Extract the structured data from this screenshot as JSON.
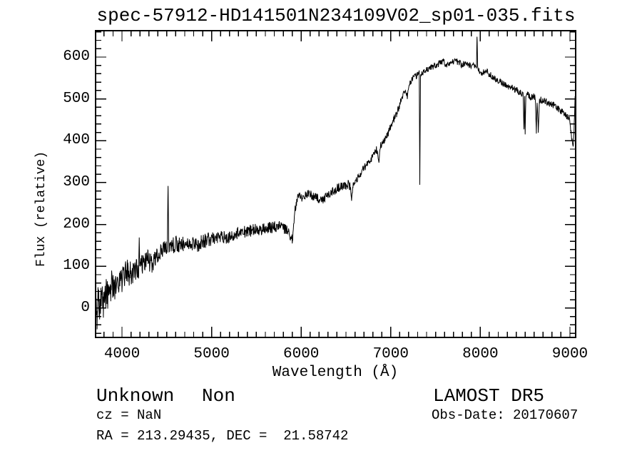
{
  "page": {
    "background": "#ffffff",
    "foreground": "#000000"
  },
  "title": "spec-57912-HD141501N234109V02_sp01-035.fits",
  "annotations": {
    "class_label": "Unknown",
    "subclass_label": "Non",
    "cz_line": "cz = NaN",
    "radec_line": "RA = 213.29435, DEC =  21.58742",
    "survey": "LAMOST DR5",
    "obs_date_line": "Obs-Date: 20170607"
  },
  "chart_data": {
    "type": "line",
    "title": "spec-57912-HD141501N234109V02_sp01-035.fits",
    "xlabel": "Wavelength (Å)",
    "ylabel": "Flux (relative)",
    "xlim": [
      3705,
      9064
    ],
    "ylim": [
      -70,
      663
    ],
    "x_ticks": [
      4000,
      5000,
      6000,
      7000,
      8000,
      9000
    ],
    "y_ticks": [
      0,
      100,
      200,
      300,
      400,
      500,
      600
    ],
    "x_minor_step": 100,
    "y_minor_step": 20,
    "grid": false,
    "legend": "none",
    "line_color": "#000000",
    "series": [
      {
        "name": "spectrum",
        "points": [
          [
            3708,
            0
          ],
          [
            3722,
            -20
          ],
          [
            3735,
            20
          ],
          [
            3750,
            -15
          ],
          [
            3768,
            28
          ],
          [
            3790,
            12
          ],
          [
            3815,
            38
          ],
          [
            3845,
            30
          ],
          [
            3875,
            52
          ],
          [
            3905,
            48
          ],
          [
            3945,
            55
          ],
          [
            3985,
            62
          ],
          [
            4025,
            78
          ],
          [
            4065,
            85
          ],
          [
            4105,
            80
          ],
          [
            4145,
            92
          ],
          [
            4186,
            90
          ],
          [
            4192,
            188
          ],
          [
            4199,
            95
          ],
          [
            4240,
            108
          ],
          [
            4290,
            116
          ],
          [
            4335,
            102
          ],
          [
            4380,
            126
          ],
          [
            4430,
            134
          ],
          [
            4470,
            140
          ],
          [
            4506,
            148
          ],
          [
            4514,
            300
          ],
          [
            4522,
            146
          ],
          [
            4565,
            150
          ],
          [
            4625,
            153
          ],
          [
            4685,
            155
          ],
          [
            4745,
            152
          ],
          [
            4805,
            156
          ],
          [
            4858,
            144
          ],
          [
            4885,
            158
          ],
          [
            4945,
            162
          ],
          [
            5005,
            166
          ],
          [
            5065,
            169
          ],
          [
            5125,
            172
          ],
          [
            5168,
            163
          ],
          [
            5225,
            175
          ],
          [
            5285,
            180
          ],
          [
            5345,
            183
          ],
          [
            5405,
            184
          ],
          [
            5465,
            186
          ],
          [
            5525,
            188
          ],
          [
            5585,
            190
          ],
          [
            5645,
            192
          ],
          [
            5705,
            194
          ],
          [
            5765,
            196
          ],
          [
            5815,
            190
          ],
          [
            5860,
            180
          ],
          [
            5888,
            158
          ],
          [
            5905,
            172
          ],
          [
            5925,
            225
          ],
          [
            5950,
            258
          ],
          [
            5980,
            270
          ],
          [
            6015,
            262
          ],
          [
            6065,
            272
          ],
          [
            6115,
            270
          ],
          [
            6175,
            262
          ],
          [
            6235,
            258
          ],
          [
            6295,
            272
          ],
          [
            6355,
            280
          ],
          [
            6415,
            288
          ],
          [
            6465,
            290
          ],
          [
            6520,
            296
          ],
          [
            6548,
            290
          ],
          [
            6563,
            252
          ],
          [
            6578,
            295
          ],
          [
            6620,
            308
          ],
          [
            6680,
            328
          ],
          [
            6740,
            345
          ],
          [
            6800,
            362
          ],
          [
            6840,
            378
          ],
          [
            6868,
            352
          ],
          [
            6885,
            388
          ],
          [
            6930,
            400
          ],
          [
            6975,
            420
          ],
          [
            7020,
            445
          ],
          [
            7065,
            465
          ],
          [
            7110,
            492
          ],
          [
            7155,
            522
          ],
          [
            7185,
            505
          ],
          [
            7215,
            540
          ],
          [
            7260,
            552
          ],
          [
            7305,
            558
          ],
          [
            7318,
            560
          ],
          [
            7324,
            292
          ],
          [
            7332,
            555
          ],
          [
            7380,
            565
          ],
          [
            7430,
            572
          ],
          [
            7480,
            578
          ],
          [
            7530,
            584
          ],
          [
            7580,
            589
          ],
          [
            7625,
            581
          ],
          [
            7680,
            587
          ],
          [
            7735,
            590
          ],
          [
            7790,
            582
          ],
          [
            7845,
            585
          ],
          [
            7900,
            576
          ],
          [
            7940,
            580
          ],
          [
            7957,
            578
          ],
          [
            7963,
            654
          ],
          [
            7970,
            574
          ],
          [
            8015,
            560
          ],
          [
            8065,
            566
          ],
          [
            8115,
            556
          ],
          [
            8165,
            548
          ],
          [
            8215,
            542
          ],
          [
            8265,
            536
          ],
          [
            8315,
            530
          ],
          [
            8365,
            525
          ],
          [
            8425,
            518
          ],
          [
            8478,
            512
          ],
          [
            8487,
            424
          ],
          [
            8494,
            504
          ],
          [
            8500,
            420
          ],
          [
            8508,
            506
          ],
          [
            8530,
            510
          ],
          [
            8560,
            504
          ],
          [
            8590,
            507
          ],
          [
            8613,
            504
          ],
          [
            8625,
            424
          ],
          [
            8634,
            494
          ],
          [
            8647,
            418
          ],
          [
            8660,
            498
          ],
          [
            8705,
            496
          ],
          [
            8755,
            491
          ],
          [
            8805,
            486
          ],
          [
            8855,
            479
          ],
          [
            8905,
            471
          ],
          [
            8950,
            462
          ],
          [
            8990,
            454
          ],
          [
            9006,
            430
          ],
          [
            9020,
            400
          ],
          [
            9036,
            392
          ],
          [
            9046,
            420
          ],
          [
            9052,
            468
          ],
          [
            9058,
            504
          ],
          [
            9061,
            494
          ],
          [
            9064,
            -35
          ]
        ]
      }
    ],
    "noise_segments": [
      [
        3708,
        3900,
        40
      ],
      [
        3900,
        4100,
        32
      ],
      [
        4100,
        4400,
        25
      ],
      [
        4400,
        4700,
        20
      ],
      [
        4700,
        5000,
        17
      ],
      [
        5000,
        5500,
        15
      ],
      [
        5500,
        5905,
        14
      ],
      [
        5905,
        6600,
        11
      ],
      [
        6600,
        7200,
        9
      ],
      [
        7200,
        8450,
        8
      ],
      [
        8450,
        9050,
        8
      ],
      [
        9050,
        9064,
        5
      ]
    ],
    "sample_step_angstrom": 4
  }
}
